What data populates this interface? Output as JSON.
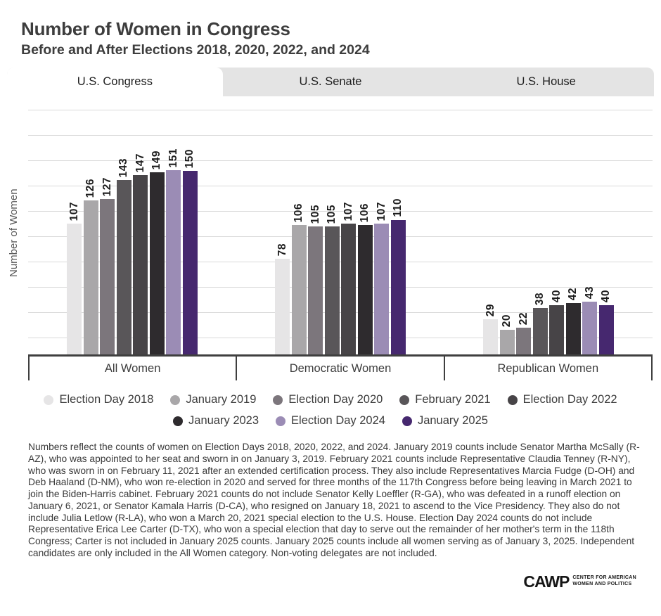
{
  "page": {
    "title": "Number of Women in Congress",
    "subtitle": "Before and After Elections 2018, 2020, 2022, and 2024"
  },
  "tabs": [
    {
      "label": "U.S. Congress",
      "active": true
    },
    {
      "label": "U.S. Senate",
      "active": false
    },
    {
      "label": "U.S. House",
      "active": false
    }
  ],
  "chart_data": {
    "type": "bar",
    "title": "Number of Women in Congress",
    "xlabel": "",
    "ylabel": "Number of Women",
    "categories": [
      "All Women",
      "Democratic Women",
      "Republican Women"
    ],
    "series": [
      {
        "name": "Election Day 2018",
        "color": "#e6e5e6",
        "values": [
          107,
          78,
          29
        ]
      },
      {
        "name": "January 2019",
        "color": "#a9a7a9",
        "values": [
          126,
          106,
          20
        ]
      },
      {
        "name": "Election Day 2020",
        "color": "#7c767c",
        "values": [
          127,
          105,
          22
        ]
      },
      {
        "name": "February 2021",
        "color": "#595659",
        "values": [
          143,
          105,
          38
        ]
      },
      {
        "name": "Election Day 2022",
        "color": "#474447",
        "values": [
          147,
          107,
          40
        ]
      },
      {
        "name": "January 2023",
        "color": "#2e2b2e",
        "values": [
          149,
          106,
          42
        ]
      },
      {
        "name": "Election Day 2024",
        "color": "#9b8cb5",
        "values": [
          151,
          107,
          43
        ]
      },
      {
        "name": "January 2025",
        "color": "#46286f",
        "values": [
          150,
          110,
          40
        ]
      }
    ],
    "ylim": [
      0,
      200
    ],
    "grid": "horizontal gridlines, no y tick labels",
    "legend_position": "bottom, two rows (5 + 3)",
    "value_labels": "above bars, rotated 90deg reading bottom-to-top"
  },
  "footnote": "Numbers reflect the counts of women on Election Days 2018, 2020, 2022, and 2024. January 2019 counts include Senator Martha McSally (R-AZ), who was appointed to her seat and sworn in on January 3, 2019. February 2021 counts include Representative Claudia Tenney (R-NY), who was sworn in on February 11, 2021 after an extended certification process. They also include Representatives Marcia Fudge (D-OH) and Deb Haaland (D-NM), who won re-election in 2020 and served for three months of the 117th Congress before being leaving in March 2021 to join the Biden-Harris cabinet. February 2021 counts do not include Senator Kelly Loeffler (R-GA), who was defeated in a runoff election on January 6, 2021, or Senator Kamala Harris (D-CA), who resigned on January 18, 2021 to ascend to the Vice Presidency. They also do not include Julia Letlow (R-LA), who won a March 20, 2021 special election to the U.S. House. Election Day 2024 counts do not include Representative Erica Lee Carter (D-TX), who won a special election that day to serve out the remainder of her mother's term in the 118th Congress; Carter is not included in January 2025 counts. January 2025 counts include all women serving as of January 3, 2025. Independent candidates are only included in the All Women category. Non-voting delegates are not included.",
  "logo": {
    "acronym": "CAWP",
    "line1": "Center for American",
    "line2": "Women and Politics"
  }
}
